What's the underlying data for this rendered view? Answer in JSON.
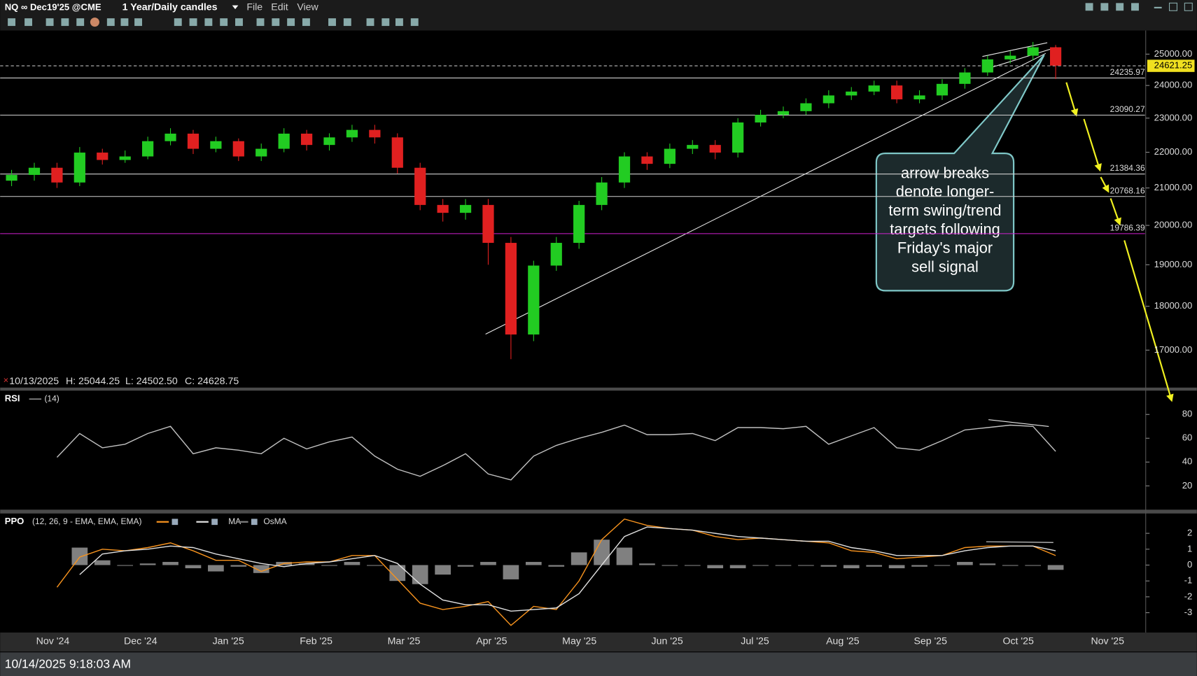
{
  "toolbar": {
    "symbol": "NQ ∞ Dec19'25 @CME",
    "timeframe": "1 Year/Daily candles",
    "menu": [
      "File",
      "Edit",
      "View"
    ]
  },
  "status_bar": {
    "timestamp": "10/14/2025 9:18:03 AM"
  },
  "chart_data": [
    {
      "type": "candlestick",
      "ohlc_header": {
        "date": "10/13/2025",
        "high": "H: 25044.25",
        "low": "L: 24502.50",
        "close": "C: 24628.75"
      },
      "x_labels": [
        "Nov '24",
        "Dec '24",
        "Jan '25",
        "Feb '25",
        "Mar '25",
        "Apr '25",
        "May '25",
        "Jun '25",
        "Jul '25",
        "Aug '25",
        "Sep '25",
        "Oct '25",
        "Nov '25"
      ],
      "open": [
        21200,
        21360,
        21560,
        21150,
        21990,
        21780,
        21880,
        22320,
        22540,
        22100,
        22320,
        21880,
        22100,
        22540,
        22210,
        22430,
        22650,
        22430,
        21560,
        20540,
        20330,
        20540,
        19550,
        17350,
        18980,
        19550,
        20540,
        21150,
        21880,
        21670,
        22100,
        22210,
        21990,
        22870,
        23100,
        23210,
        23450,
        23690,
        23810,
        24000,
        23570,
        23690,
        24050,
        24410,
        24830,
        24950,
        25225
      ],
      "high": [
        21500,
        21700,
        21700,
        22150,
        22100,
        22050,
        22450,
        22700,
        22650,
        22450,
        22400,
        22250,
        22700,
        22650,
        22550,
        22800,
        22800,
        22550,
        21700,
        20700,
        20700,
        20700,
        19700,
        19100,
        19700,
        20650,
        21300,
        22000,
        22000,
        22250,
        22350,
        22350,
        23000,
        23250,
        23350,
        23600,
        23850,
        23950,
        24150,
        24150,
        23850,
        24200,
        24550,
        24950,
        25100,
        25400,
        25300
      ],
      "low": [
        21050,
        21200,
        21000,
        21050,
        21650,
        21700,
        21800,
        22200,
        21950,
        22000,
        21750,
        21750,
        22000,
        22050,
        22050,
        22300,
        22250,
        21400,
        20400,
        20100,
        20150,
        19000,
        16800,
        17200,
        18850,
        19400,
        20400,
        21000,
        21500,
        21550,
        21950,
        21800,
        21850,
        22750,
        23000,
        23100,
        23300,
        23550,
        23700,
        23450,
        23450,
        23550,
        23900,
        24300,
        24700,
        24800,
        24200
      ],
      "close": [
        21360,
        21560,
        21150,
        21990,
        21780,
        21880,
        22320,
        22540,
        22100,
        22320,
        21880,
        22100,
        22540,
        22210,
        22430,
        22650,
        22430,
        21560,
        20540,
        20330,
        20540,
        19550,
        17350,
        18980,
        19550,
        20540,
        21150,
        21880,
        21670,
        22100,
        22210,
        21990,
        22870,
        23100,
        23210,
        23450,
        23690,
        23810,
        24000,
        23570,
        23690,
        24050,
        24410,
        24830,
        24950,
        25225,
        24628.75
      ],
      "up_color": "#22cc22",
      "down_color": "#e02020",
      "log_scale": true,
      "ylim": [
        16190,
        25730
      ],
      "yticks": [
        {
          "value": 17000,
          "label": "17000.00"
        },
        {
          "value": 18000,
          "label": "18000.00"
        },
        {
          "value": 19000,
          "label": "19000.00"
        },
        {
          "value": 20000,
          "label": "20000.00"
        },
        {
          "value": 21000,
          "label": "21000.00"
        },
        {
          "value": 22000,
          "label": "22000.00"
        },
        {
          "value": 23000,
          "label": "23000.00"
        },
        {
          "value": 24000,
          "label": "24000.00"
        },
        {
          "value": 25000,
          "label": "25000.00"
        }
      ],
      "levels": [
        24235.97,
        23090.27,
        21384.36,
        20768.16,
        19786.39
      ],
      "level_colors": [
        "#d0d0d0",
        "#d0d0d0",
        "#d0d0d0",
        "#d0d0d0",
        "#d020d0"
      ],
      "last_price": 24621.25,
      "annotation": [
        "arrow breaks",
        "denote longer-",
        "term swing/trend",
        "targets following",
        "Friday's major",
        "sell signal"
      ]
    },
    {
      "type": "line",
      "title": "RSI",
      "params": "(14)",
      "color": "#c0c0c0",
      "values": [
        null,
        null,
        44,
        64,
        52,
        55,
        64,
        70,
        47,
        52,
        50,
        47,
        60,
        51,
        57,
        61,
        45,
        34,
        28,
        37,
        47,
        30,
        25,
        45,
        54,
        60,
        65,
        71,
        63,
        63,
        64,
        58,
        69,
        69,
        68,
        70,
        55,
        62,
        69,
        52,
        50,
        58,
        67,
        69,
        71,
        70,
        49
      ],
      "ylim": [
        0,
        100
      ],
      "yticks": [
        20,
        40,
        60,
        80
      ]
    },
    {
      "type": "line-histogram",
      "title": "PPO",
      "params": "(12, 26, 9 - EMA, EMA, EMA)",
      "series": [
        {
          "color": "#f7931e",
          "values": [
            null,
            null,
            -1.4,
            0.5,
            1.0,
            0.9,
            1.1,
            1.4,
            0.9,
            0.3,
            0.3,
            -0.4,
            0.1,
            0.2,
            0.2,
            0.6,
            0.6,
            -0.9,
            -2.4,
            -2.8,
            -2.6,
            -2.3,
            -3.8,
            -2.6,
            -2.8,
            -1.0,
            1.6,
            2.9,
            2.5,
            2.3,
            2.2,
            1.8,
            1.6,
            1.7,
            1.6,
            1.5,
            1.4,
            0.9,
            0.8,
            0.4,
            0.5,
            0.6,
            1.1,
            1.2,
            1.2,
            1.2,
            0.6
          ]
        },
        {
          "name": "MA",
          "color": "#e0e0e0",
          "values": [
            null,
            null,
            null,
            -0.6,
            0.7,
            0.9,
            1.0,
            1.2,
            1.1,
            0.7,
            0.4,
            0.1,
            -0.1,
            0.1,
            0.2,
            0.4,
            0.6,
            0.1,
            -1.2,
            -2.2,
            -2.5,
            -2.5,
            -2.9,
            -2.8,
            -2.7,
            -1.8,
            0.0,
            1.8,
            2.4,
            2.3,
            2.2,
            2.0,
            1.8,
            1.7,
            1.6,
            1.5,
            1.5,
            1.1,
            0.9,
            0.6,
            0.6,
            0.6,
            0.9,
            1.1,
            1.2,
            1.2,
            0.9
          ]
        },
        {
          "name": "OsMA",
          "color": "#808080",
          "values": [
            null,
            null,
            null,
            1.1,
            0.3,
            0.0,
            0.1,
            0.2,
            -0.2,
            -0.4,
            -0.1,
            -0.5,
            0.2,
            0.1,
            0.0,
            0.2,
            0.0,
            -1.0,
            -1.2,
            -0.6,
            -0.1,
            0.2,
            -0.9,
            0.2,
            -0.1,
            0.8,
            1.6,
            1.1,
            0.1,
            0.0,
            0.0,
            -0.2,
            -0.2,
            0.0,
            0.0,
            0.0,
            -0.1,
            -0.2,
            -0.1,
            -0.2,
            -0.1,
            0.0,
            0.2,
            0.1,
            0.0,
            0.0,
            -0.3
          ]
        }
      ],
      "ylim": [
        -4.2,
        3.25
      ],
      "yticks": [
        2,
        1,
        0,
        -1,
        -2,
        -3
      ]
    }
  ]
}
